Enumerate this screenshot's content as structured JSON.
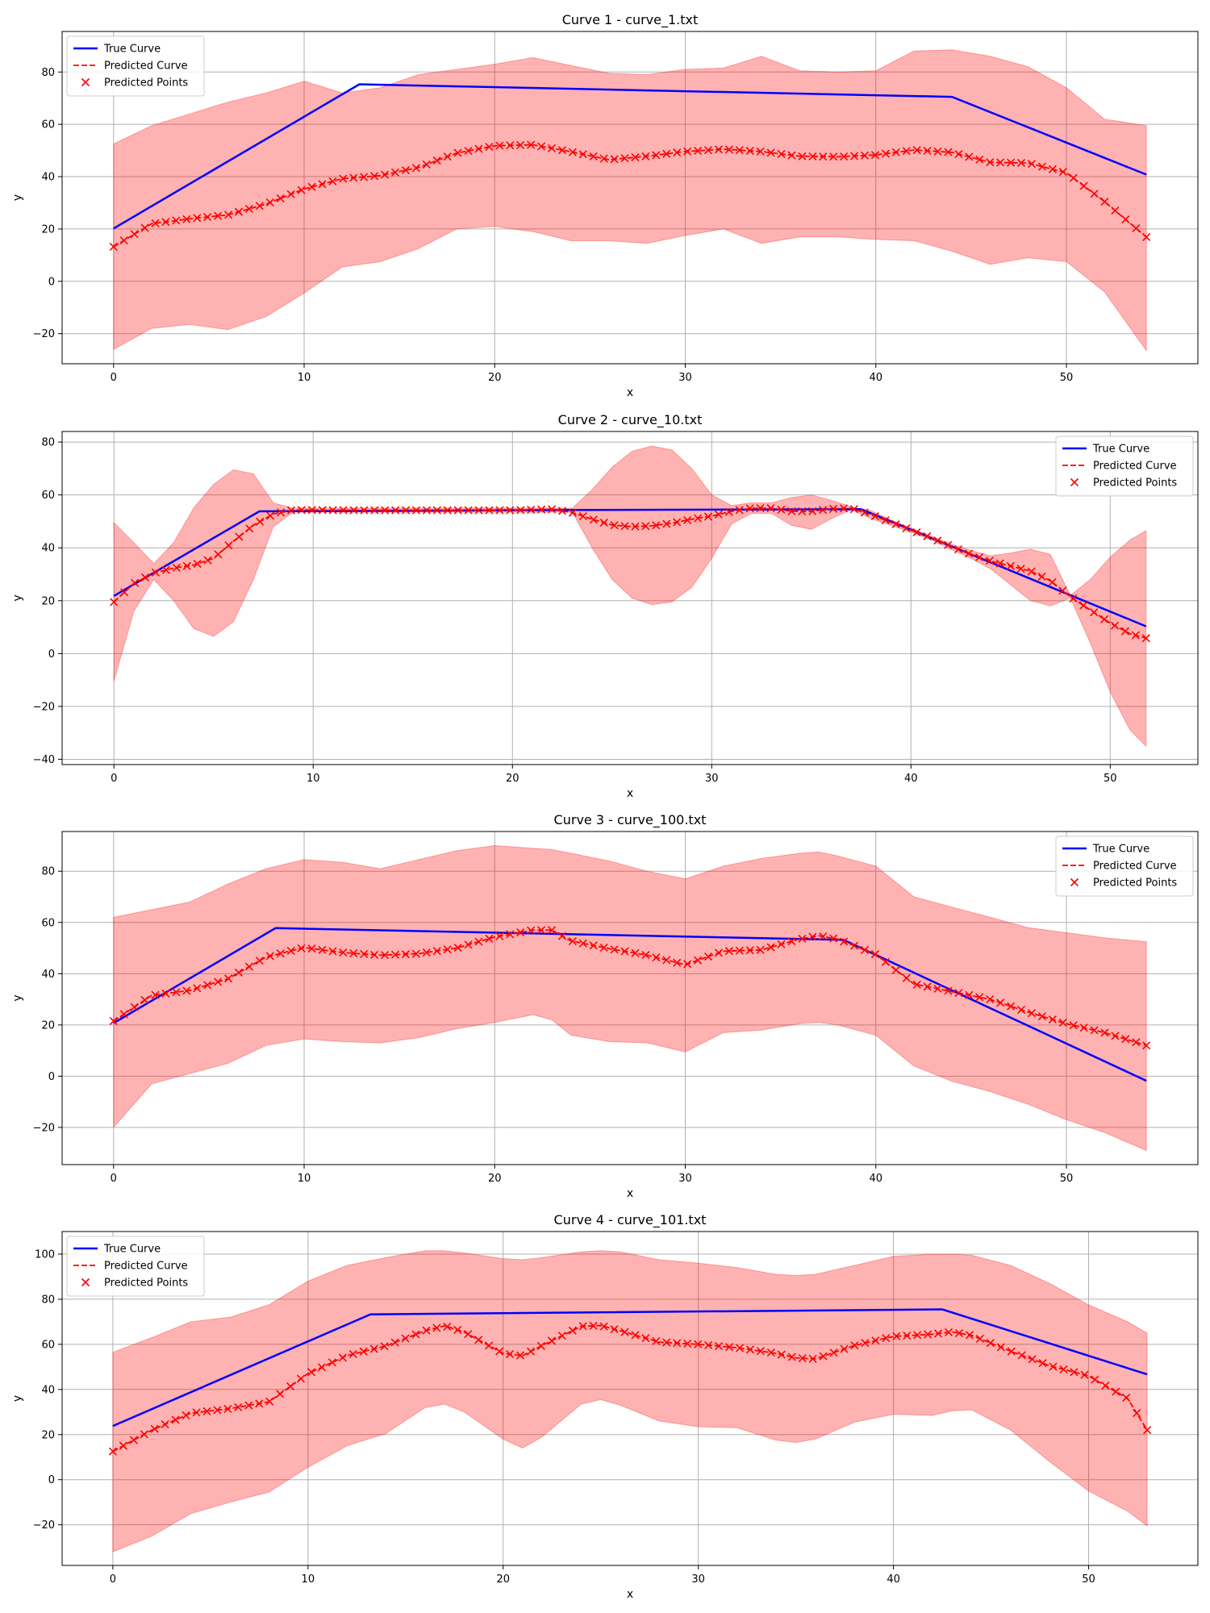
{
  "chart_data": [
    {
      "type": "line",
      "title": "Curve 1 - curve_1.txt",
      "xlabel": "x",
      "ylabel": "y",
      "xlim": [
        -2.7,
        56.9
      ],
      "ylim": [
        -31.5,
        95.5
      ],
      "xticks": [
        0,
        10,
        20,
        30,
        40,
        50
      ],
      "yticks": [
        -20,
        0,
        20,
        40,
        60,
        80
      ],
      "grid": true,
      "legend_position": "top-left",
      "legend": [
        "True Curve",
        "Predicted Curve",
        "Predicted Points"
      ],
      "true_curve": {
        "x": [
          0,
          12.9,
          44,
          54.2
        ],
        "y": [
          20.2,
          75.3,
          70.5,
          40.8
        ]
      },
      "predicted": {
        "x": [
          0,
          2,
          4,
          6,
          8,
          10,
          12,
          14,
          16,
          18,
          20,
          22,
          24,
          26,
          28,
          30,
          32,
          34,
          36,
          38,
          40,
          42,
          44,
          46,
          48,
          50,
          52,
          54.2
        ],
        "y": [
          13.2,
          22.0,
          23.9,
          25.4,
          29.5,
          35.3,
          39.2,
          40.4,
          43.5,
          49.0,
          51.8,
          52.2,
          49.5,
          46.5,
          47.8,
          49.6,
          50.5,
          49.6,
          47.8,
          47.6,
          48.3,
          50.2,
          49.3,
          45.5,
          45.2,
          41.5,
          30.5,
          16.9
        ]
      },
      "band_upper": [
        52.5,
        59.5,
        64.0,
        68.5,
        72.0,
        76.5,
        72.0,
        74.0,
        79.0,
        81.0,
        83.0,
        85.5,
        82.5,
        79.5,
        79.0,
        81.0,
        81.5,
        86.0,
        80.5,
        80.0,
        80.5,
        88.0,
        88.5,
        86.0,
        82.0,
        74.0,
        62.0,
        59.5
      ],
      "band_lower": [
        -26.0,
        -18.0,
        -16.5,
        -18.5,
        -13.5,
        -4.5,
        5.5,
        7.5,
        12.5,
        20.0,
        21.0,
        19.0,
        15.5,
        15.5,
        14.5,
        17.5,
        20.0,
        14.5,
        17.0,
        17.0,
        16.0,
        15.5,
        11.5,
        6.5,
        9.0,
        7.5,
        -4.0,
        -26.5
      ],
      "n_points": 100
    },
    {
      "type": "line",
      "title": "Curve 2 - curve_10.txt",
      "xlabel": "x",
      "ylabel": "y",
      "xlim": [
        -2.6,
        54.4
      ],
      "ylim": [
        -42,
        84
      ],
      "xticks": [
        0,
        10,
        20,
        30,
        40,
        50
      ],
      "yticks": [
        -40,
        -20,
        0,
        20,
        40,
        60,
        80
      ],
      "grid": true,
      "legend_position": "top-right",
      "legend": [
        "True Curve",
        "Predicted Curve",
        "Predicted Points"
      ],
      "true_curve": {
        "x": [
          0,
          7.3,
          22.5,
          37.5,
          51.8
        ],
        "y": [
          21.8,
          53.8,
          54.3,
          54.6,
          10.3
        ]
      },
      "predicted": {
        "x": [
          0,
          1,
          2,
          3,
          4,
          5,
          6,
          7,
          8,
          9,
          10,
          12,
          14,
          16,
          18,
          20,
          22,
          23,
          24,
          25,
          26,
          27,
          28,
          29,
          30,
          31,
          32,
          33,
          34,
          35,
          36,
          37,
          38,
          39,
          40,
          41,
          42,
          43,
          44,
          45,
          46,
          47,
          48,
          49,
          50,
          51,
          51.8
        ],
        "y": [
          19.5,
          26.5,
          30.5,
          32.3,
          33.5,
          36.0,
          42.5,
          48.5,
          52.8,
          54.3,
          54.3,
          54.2,
          54.2,
          54.2,
          54.2,
          54.2,
          54.6,
          53.3,
          50.8,
          48.6,
          48.0,
          48.3,
          49.3,
          50.8,
          52.0,
          53.8,
          55.0,
          55.0,
          53.8,
          53.8,
          54.7,
          55.0,
          52.5,
          49.6,
          46.7,
          43.8,
          40.6,
          37.5,
          35.0,
          33.1,
          31.2,
          27.5,
          21.5,
          16.5,
          11.5,
          7.5,
          5.8
        ]
      },
      "band_upper": [
        49.5,
        42.0,
        34.0,
        42.0,
        55.0,
        64.0,
        69.5,
        68.0,
        57.0,
        55.0,
        55.0,
        55.0,
        55.0,
        55.0,
        55.0,
        55.0,
        55.0,
        55.0,
        62.0,
        70.5,
        76.5,
        78.5,
        77.0,
        70.0,
        60.0,
        56.0,
        57.0,
        57.0,
        59.0,
        60.0,
        58.0,
        55.5,
        54.0,
        50.5,
        47.5,
        44.5,
        41.5,
        39.0,
        37.0,
        38.0,
        39.5,
        37.5,
        22.0,
        28.0,
        36.5,
        43.0,
        46.5
      ],
      "band_lower": [
        -10.5,
        16.0,
        28.0,
        20.0,
        9.5,
        6.5,
        12.0,
        28.0,
        48.0,
        53.5,
        53.5,
        53.5,
        53.5,
        53.5,
        53.5,
        53.5,
        53.5,
        53.5,
        40.0,
        28.0,
        21.0,
        18.5,
        19.5,
        25.0,
        36.0,
        49.0,
        53.0,
        53.0,
        48.5,
        47.0,
        51.0,
        54.5,
        51.0,
        48.5,
        46.0,
        43.0,
        39.5,
        36.0,
        32.0,
        26.0,
        20.0,
        18.0,
        21.0,
        4.0,
        -14.5,
        -29.0,
        -35.0
      ],
      "n_points": 100
    },
    {
      "type": "line",
      "title": "Curve 3 - curve_100.txt",
      "xlabel": "x",
      "ylabel": "y",
      "xlim": [
        -2.7,
        56.9
      ],
      "ylim": [
        -34.5,
        95.5
      ],
      "xticks": [
        0,
        10,
        20,
        30,
        40,
        50
      ],
      "yticks": [
        -20,
        0,
        20,
        40,
        60,
        80
      ],
      "grid": true,
      "legend_position": "top-right",
      "legend": [
        "True Curve",
        "Predicted Curve",
        "Predicted Points"
      ],
      "true_curve": {
        "x": [
          0,
          8.5,
          22,
          38.3,
          54.2
        ],
        "y": [
          20.7,
          57.8,
          55.7,
          53.2,
          -1.8
        ]
      },
      "predicted": {
        "x": [
          0,
          2,
          4,
          6,
          8,
          10,
          12,
          14,
          16,
          18,
          20,
          22,
          23,
          24,
          26,
          28,
          30,
          32,
          34,
          36,
          37,
          38,
          40,
          42,
          44,
          46,
          48,
          50,
          52,
          54.2
        ],
        "y": [
          21.5,
          31.5,
          33.5,
          38.0,
          46.5,
          50.2,
          48.3,
          47.2,
          47.8,
          50.0,
          54.3,
          57.0,
          57.0,
          52.8,
          49.8,
          47.2,
          43.5,
          48.8,
          49.3,
          53.5,
          54.8,
          53.5,
          47.5,
          36.0,
          33.0,
          30.0,
          25.0,
          20.5,
          17.0,
          12.0
        ]
      },
      "band_upper": [
        62.0,
        65.0,
        68.0,
        75.0,
        81.0,
        84.5,
        83.5,
        81.0,
        84.5,
        88.0,
        90.0,
        89.0,
        88.5,
        87.0,
        84.0,
        80.0,
        77.0,
        82.0,
        85.0,
        87.0,
        87.5,
        86.0,
        82.0,
        70.0,
        66.0,
        62.0,
        58.0,
        56.0,
        54.0,
        52.5
      ],
      "band_lower": [
        -20.0,
        -3.0,
        1.0,
        5.0,
        12.0,
        14.5,
        13.5,
        13.0,
        15.0,
        18.5,
        21.0,
        24.0,
        22.0,
        16.0,
        13.5,
        13.0,
        9.5,
        17.0,
        18.0,
        20.5,
        21.0,
        20.0,
        16.0,
        4.0,
        -2.0,
        -6.0,
        -11.0,
        -17.0,
        -22.0,
        -29.0
      ],
      "n_points": 100
    },
    {
      "type": "line",
      "title": "Curve 4 - curve_101.txt",
      "xlabel": "x",
      "ylabel": "y",
      "xlim": [
        -2.6,
        55.6
      ],
      "ylim": [
        -38,
        110
      ],
      "xticks": [
        0,
        10,
        20,
        30,
        40,
        50
      ],
      "yticks": [
        -20,
        0,
        20,
        40,
        60,
        80,
        100
      ],
      "grid": true,
      "legend_position": "top-left",
      "legend": [
        "True Curve",
        "Predicted Curve",
        "Predicted Points"
      ],
      "true_curve": {
        "x": [
          0,
          13.2,
          42.5,
          53
        ],
        "y": [
          23.8,
          73.3,
          75.5,
          46.7
        ]
      },
      "predicted": {
        "x": [
          0,
          2,
          4,
          6,
          8,
          10,
          12,
          14,
          16,
          17,
          18,
          20,
          21,
          22,
          24,
          25,
          26,
          28,
          30,
          32,
          34,
          35,
          36,
          38,
          40,
          42,
          43,
          44,
          46,
          48,
          50,
          52,
          53
        ],
        "y": [
          12.5,
          22.0,
          29.5,
          31.5,
          34.5,
          47.0,
          55.0,
          59.3,
          66.0,
          68.2,
          65.5,
          56.0,
          55.0,
          59.5,
          68.0,
          68.3,
          66.0,
          61.0,
          60.0,
          58.5,
          56.0,
          54.0,
          53.5,
          59.5,
          63.5,
          64.5,
          65.5,
          64.0,
          57.0,
          50.5,
          46.0,
          36.0,
          22.0
        ]
      },
      "band_upper": [
        56.5,
        63.0,
        70.0,
        72.0,
        77.5,
        88.0,
        95.0,
        98.5,
        101.5,
        101.5,
        100.5,
        98.0,
        97.5,
        98.5,
        101.0,
        101.5,
        101.0,
        97.5,
        96.0,
        94.0,
        91.0,
        90.5,
        91.0,
        95.0,
        99.0,
        100.0,
        100.0,
        99.5,
        95.0,
        87.0,
        77.5,
        70.0,
        65.0
      ],
      "band_lower": [
        -32.0,
        -25.0,
        -15.0,
        -10.0,
        -5.5,
        5.5,
        15.0,
        20.5,
        32.0,
        33.5,
        30.0,
        18.0,
        14.0,
        19.0,
        33.5,
        35.5,
        33.0,
        26.0,
        23.5,
        23.0,
        17.5,
        16.5,
        18.0,
        25.5,
        29.0,
        28.5,
        30.5,
        31.0,
        22.0,
        8.0,
        -5.0,
        -14.0,
        -20.5
      ],
      "n_points": 100
    }
  ]
}
